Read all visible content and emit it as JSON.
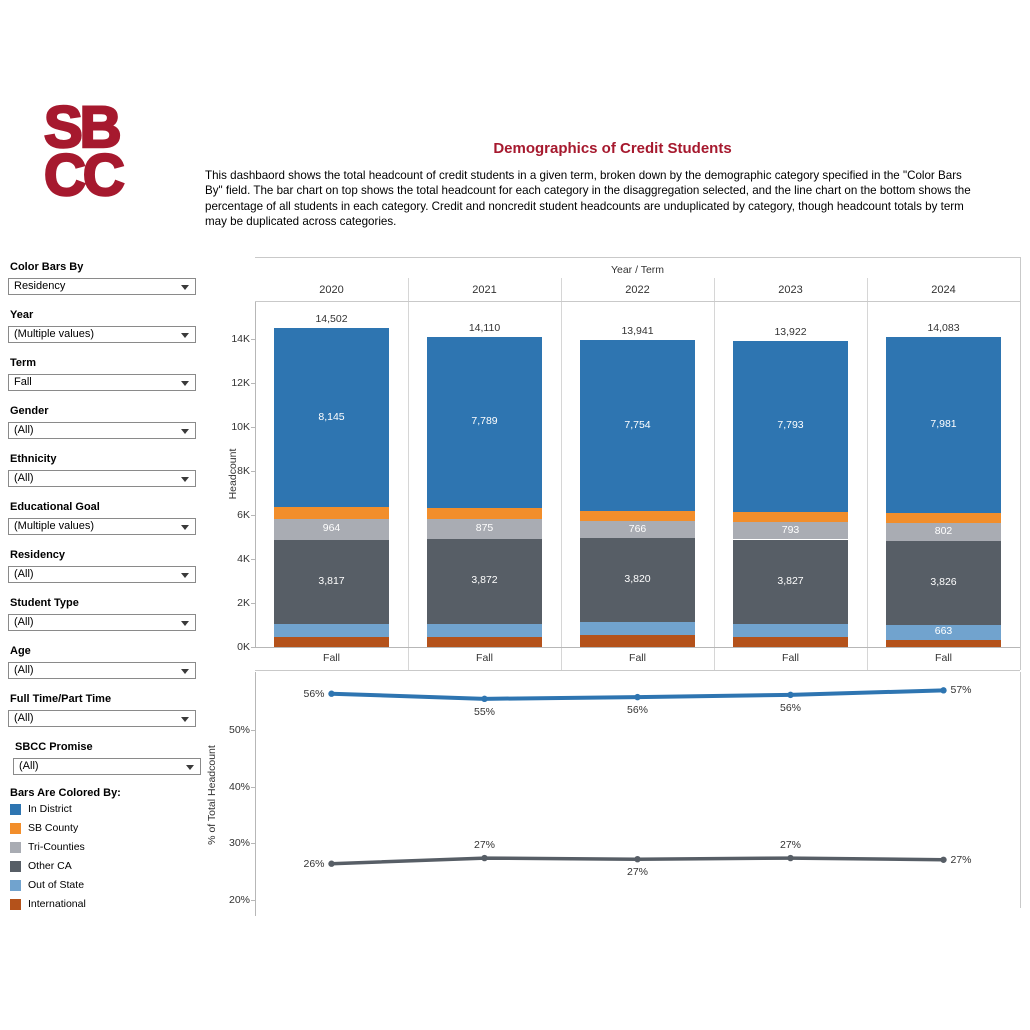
{
  "header": {
    "logo_line1": "SB",
    "logo_line2": "CC",
    "title": "Demographics of Credit Students",
    "description_lines": [
      "This dashbaord shows the total headcount of credit students in a given term, broken down by the demographic category specified in the \"Color Bars",
      "By\" field. The bar chart on top shows the total headcount for each category in the disaggregation selected, and the line chart on the bottom shows the",
      "percentage of all students in each category. Credit and noncredit student headcounts are unduplicated by category, though headcount totals by term",
      "may be duplicated across categories."
    ]
  },
  "colors": {
    "brand": "#A6192E",
    "in_district": "#2E75B1",
    "sb_county": "#F28E2B",
    "tri_counties": "#A9ACB3",
    "other_ca": "#575E66",
    "out_of_state": "#71A3CE",
    "international": "#B4521B"
  },
  "sidebar": {
    "filters": [
      {
        "label": "Color Bars By",
        "value": "Residency"
      },
      {
        "label": "Year",
        "value": "(Multiple values)"
      },
      {
        "label": "Term",
        "value": "Fall"
      },
      {
        "label": "Gender",
        "value": "(All)"
      },
      {
        "label": "Ethnicity",
        "value": "(All)"
      },
      {
        "label": "Educational Goal",
        "value": "(Multiple values)"
      },
      {
        "label": "Residency",
        "value": "(All)"
      },
      {
        "label": "Student Type",
        "value": "(All)"
      },
      {
        "label": "Age",
        "value": "(All)"
      },
      {
        "label": "Full Time/Part Time",
        "value": "(All)"
      },
      {
        "label": "SBCC Promise",
        "value": "(All)"
      }
    ],
    "legend_title": "Bars Are Colored By:",
    "legend": [
      {
        "label": "In District",
        "color": "#2E75B1"
      },
      {
        "label": "SB County",
        "color": "#F28E2B"
      },
      {
        "label": "Tri-Counties",
        "color": "#A9ACB3"
      },
      {
        "label": "Other CA",
        "color": "#575E66"
      },
      {
        "label": "Out of State",
        "color": "#71A3CE"
      },
      {
        "label": "International",
        "color": "#B4521B"
      }
    ]
  },
  "chart_data": [
    {
      "type": "bar",
      "stacked": true,
      "field_header": "Year / Term",
      "categories": [
        "2020",
        "2021",
        "2022",
        "2023",
        "2024"
      ],
      "term_labels": [
        "Fall",
        "Fall",
        "Fall",
        "Fall",
        "Fall"
      ],
      "ylabel": "Headcount",
      "ylim": [
        0,
        15680
      ],
      "yticks": [
        "0K",
        "2K",
        "4K",
        "6K",
        "8K",
        "10K",
        "12K",
        "14K"
      ],
      "ytick_values": [
        0,
        2000,
        4000,
        6000,
        8000,
        10000,
        12000,
        14000
      ],
      "totals": [
        14502,
        14110,
        13941,
        13922,
        14083
      ],
      "total_labels": [
        "14,502",
        "14,110",
        "13,941",
        "13,922",
        "14,083"
      ],
      "series": [
        {
          "name": "International",
          "color": "#B4521B",
          "values": [
            466,
            474,
            551,
            459,
            331
          ],
          "labels": [
            "",
            "",
            "",
            "",
            ""
          ]
        },
        {
          "name": "Out of State",
          "color": "#71A3CE",
          "values": [
            590,
            580,
            570,
            600,
            663
          ],
          "labels": [
            "",
            "",
            "",
            "",
            "663"
          ]
        },
        {
          "name": "Other CA",
          "color": "#575E66",
          "values": [
            3817,
            3872,
            3820,
            3827,
            3826
          ],
          "labels": [
            "3,817",
            "3,872",
            "3,820",
            "3,827",
            "3,826"
          ]
        },
        {
          "name": "Tri-Counties",
          "color": "#A9ACB3",
          "values": [
            964,
            875,
            766,
            793,
            802
          ],
          "labels": [
            "964",
            "875",
            "766",
            "793",
            "802"
          ]
        },
        {
          "name": "SB County",
          "color": "#F28E2B",
          "values": [
            520,
            520,
            480,
            450,
            480
          ],
          "labels": [
            "",
            "",
            "",
            "",
            ""
          ]
        },
        {
          "name": "In District",
          "color": "#2E75B1",
          "values": [
            8145,
            7789,
            7754,
            7793,
            7981
          ],
          "labels": [
            "8,145",
            "7,789",
            "7,754",
            "7,793",
            "7,981"
          ]
        }
      ]
    },
    {
      "type": "line",
      "x": [
        "2020",
        "2021",
        "2022",
        "2023",
        "2024"
      ],
      "ylabel": "% of Total Headcount",
      "ylim": [
        17,
        60
      ],
      "yticks": [
        "20%",
        "30%",
        "40%",
        "50%"
      ],
      "ytick_values": [
        20,
        30,
        40,
        50
      ],
      "series": [
        {
          "name": "In District",
          "color": "#2E75B1",
          "values": [
            56.4,
            55.5,
            55.8,
            56.2,
            57.0
          ],
          "labels": [
            "56%",
            "55%",
            "56%",
            "56%",
            "57%"
          ],
          "label_pos": [
            "left",
            "below",
            "below",
            "below",
            "right"
          ]
        },
        {
          "name": "Other CA",
          "color": "#575E66",
          "values": [
            26.4,
            27.4,
            27.2,
            27.4,
            27.1
          ],
          "labels": [
            "26%",
            "27%",
            "27%",
            "27%",
            "27%"
          ],
          "label_pos": [
            "left",
            "above",
            "below",
            "above",
            "right"
          ]
        }
      ]
    }
  ]
}
